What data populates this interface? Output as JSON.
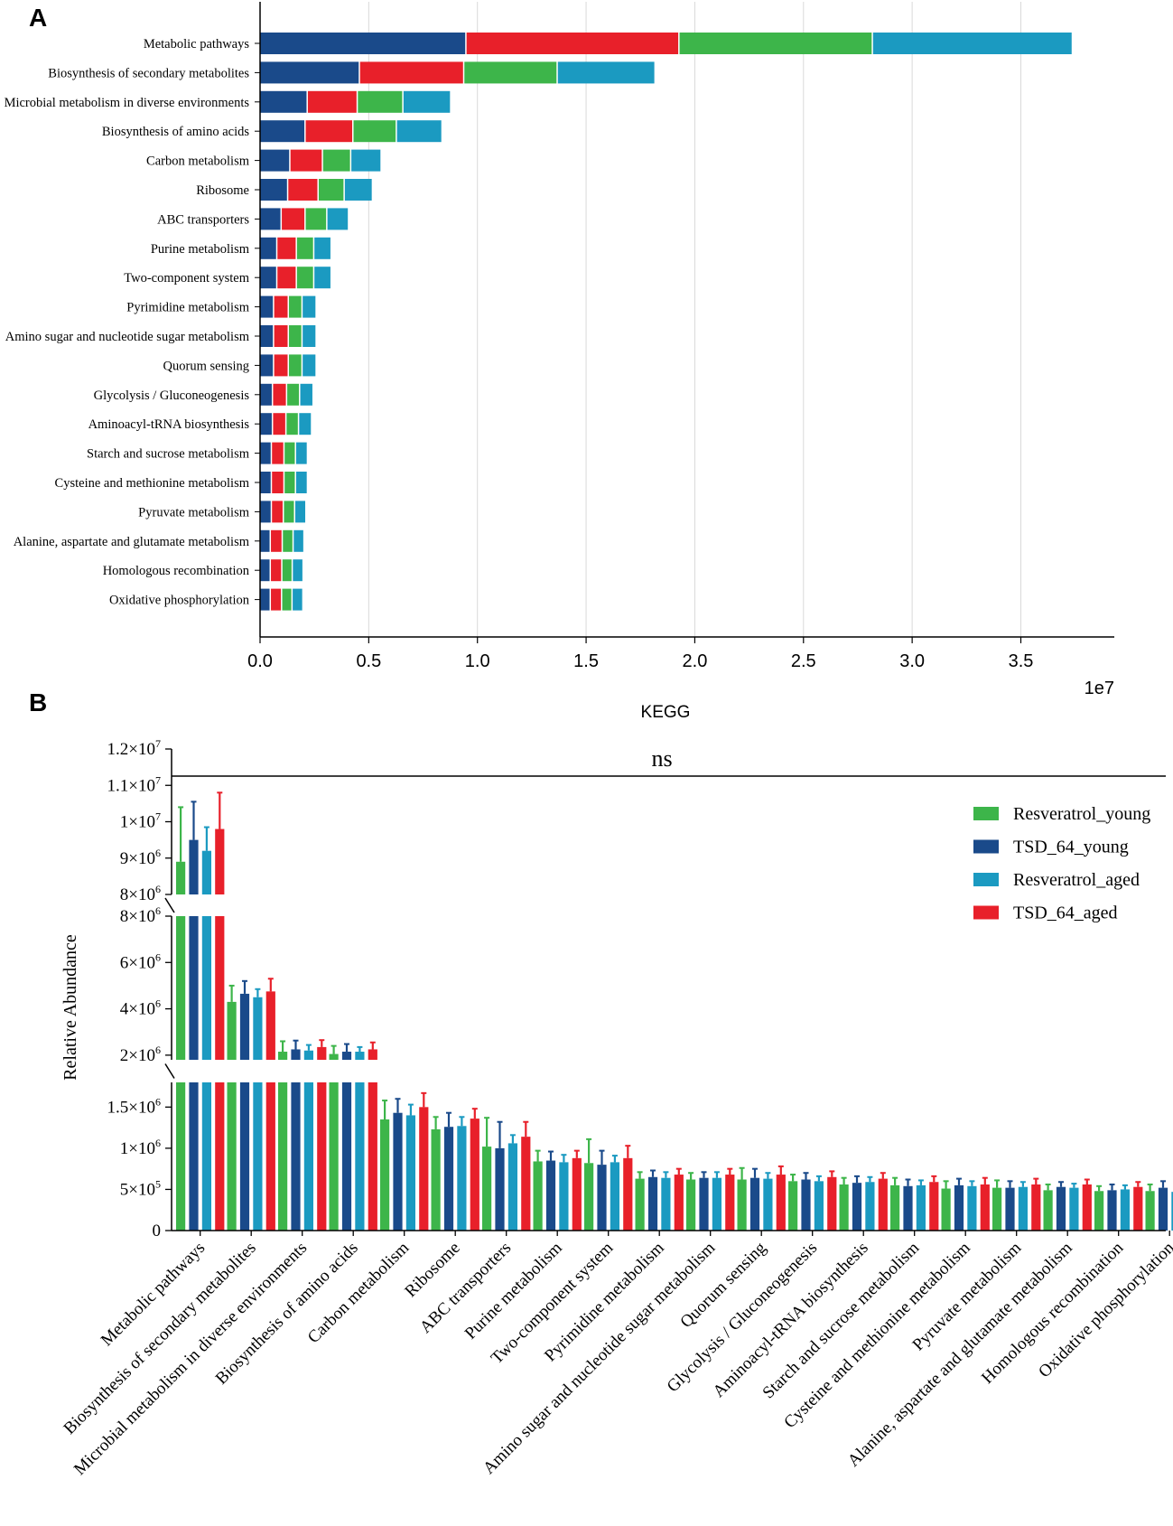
{
  "figure": {
    "panel_a_label": "A",
    "panel_b_label": "B"
  },
  "colors": {
    "TSD_64_young": "#1a4a8a",
    "TSD_64_aged": "#e8202a",
    "Resveratrol_young": "#3db54a",
    "Resveratrol_aged": "#1b9ac1",
    "grid": "#d9d9d9",
    "axis": "#000000"
  },
  "chart_data": [
    {
      "type": "bar",
      "orientation": "horizontal",
      "stacked": true,
      "title": "",
      "xlabel": "KEGG",
      "ylabel": "",
      "offset_text": "1e7",
      "xlim": [
        0,
        3.93
      ],
      "xticks": [
        "0.0",
        "0.5",
        "1.0",
        "1.5",
        "2.0",
        "2.5",
        "3.0",
        "3.5"
      ],
      "xtick_values": [
        0,
        0.5,
        1.0,
        1.5,
        2.0,
        2.5,
        3.0,
        3.5
      ],
      "grid": true,
      "categories": [
        "Metabolic pathways",
        "Biosynthesis of secondary metabolites",
        "Microbial metabolism in diverse environments",
        "Biosynthesis of amino acids",
        "Carbon metabolism",
        "Ribosome",
        "ABC transporters",
        "Purine metabolism",
        "Two-component system",
        "Pyrimidine metabolism",
        "Amino sugar and nucleotide sugar metabolism",
        "Quorum sensing",
        "Glycolysis / Gluconeogenesis",
        "Aminoacyl-tRNA biosynthesis",
        "Starch and sucrose metabolism",
        "Cysteine and methionine metabolism",
        "Pyruvate metabolism",
        "Alanine, aspartate and glutamate metabolism",
        "Homologous recombination",
        "Oxidative phosphorylation"
      ],
      "series": [
        {
          "name": "TSD_64_young",
          "values": [
            0.95,
            0.46,
            0.22,
            0.21,
            0.14,
            0.13,
            0.1,
            0.08,
            0.08,
            0.065,
            0.065,
            0.065,
            0.06,
            0.06,
            0.055,
            0.055,
            0.055,
            0.05,
            0.05,
            0.05
          ]
        },
        {
          "name": "TSD_64_aged",
          "values": [
            0.98,
            0.48,
            0.23,
            0.22,
            0.15,
            0.14,
            0.11,
            0.09,
            0.09,
            0.068,
            0.068,
            0.068,
            0.065,
            0.062,
            0.058,
            0.058,
            0.055,
            0.055,
            0.053,
            0.052
          ]
        },
        {
          "name": "Resveratrol_young",
          "values": [
            0.89,
            0.43,
            0.21,
            0.2,
            0.13,
            0.12,
            0.1,
            0.08,
            0.08,
            0.063,
            0.063,
            0.063,
            0.06,
            0.058,
            0.053,
            0.053,
            0.052,
            0.05,
            0.048,
            0.048
          ]
        },
        {
          "name": "Resveratrol_aged",
          "values": [
            0.92,
            0.45,
            0.22,
            0.21,
            0.14,
            0.13,
            0.1,
            0.08,
            0.08,
            0.065,
            0.065,
            0.065,
            0.062,
            0.06,
            0.055,
            0.055,
            0.052,
            0.05,
            0.05,
            0.05
          ]
        }
      ]
    },
    {
      "type": "bar",
      "orientation": "vertical",
      "grouped": true,
      "broken_axis": true,
      "title": "",
      "xlabel": "",
      "ylabel": "Relative Abundance",
      "significance": "ns",
      "legend_position": "top-right",
      "y_segments": [
        {
          "ylim": [
            8000000,
            12000000
          ],
          "ticks": [
            {
              "base": "8×10",
              "exp": "6"
            },
            {
              "base": "9×10",
              "exp": "6"
            },
            {
              "base": "1×10",
              "exp": "7"
            },
            {
              "base": "1.1×10",
              "exp": "7"
            },
            {
              "base": "1.2×10",
              "exp": "7"
            }
          ]
        },
        {
          "ylim": [
            1800000,
            8000000
          ],
          "ticks": [
            {
              "base": "2×10",
              "exp": "6"
            },
            {
              "base": "4×10",
              "exp": "6"
            },
            {
              "base": "6×10",
              "exp": "6"
            },
            {
              "base": "8×10",
              "exp": "6"
            }
          ]
        },
        {
          "ylim": [
            0,
            1800000
          ],
          "ticks": [
            {
              "base": "0",
              "exp": ""
            },
            {
              "base": "5×10",
              "exp": "5"
            },
            {
              "base": "1×10",
              "exp": "6"
            },
            {
              "base": "1.5×10",
              "exp": "6"
            }
          ]
        }
      ],
      "categories": [
        "Metabolic pathways",
        "Biosynthesis of secondary metabolites",
        "Microbial metabolism in diverse environments",
        "Biosynthesis of amino acids",
        "Carbon metabolism",
        "Ribosome",
        "ABC transporters",
        "Purine metabolism",
        "Two-component system",
        "Pyrimidine metabolism",
        "Amino sugar and nucleotide sugar metabolism",
        "Quorum sensing",
        "Glycolysis / Gluconeogenesis",
        "Aminoacyl-tRNA biosynthesis",
        "Starch and sucrose metabolism",
        "Cysteine and methionine metabolism",
        "Pyruvate metabolism",
        "Alanine, aspartate and glutamate metabolism",
        "Homologous recombination",
        "Oxidative phosphorylation"
      ],
      "series": [
        {
          "name": "Resveratrol_young",
          "values": [
            8900000,
            4300000,
            2150000,
            2050000,
            1350000,
            1230000,
            1020000,
            840000,
            820000,
            630000,
            620000,
            620000,
            600000,
            560000,
            550000,
            510000,
            520000,
            490000,
            480000,
            480000
          ],
          "errors": [
            1500000,
            700000,
            450000,
            350000,
            230000,
            150000,
            350000,
            130000,
            290000,
            80000,
            80000,
            140000,
            80000,
            80000,
            90000,
            90000,
            90000,
            70000,
            60000,
            80000
          ]
        },
        {
          "name": "TSD_64_young",
          "values": [
            9500000,
            4650000,
            2250000,
            2150000,
            1430000,
            1260000,
            1000000,
            850000,
            800000,
            650000,
            640000,
            640000,
            620000,
            580000,
            540000,
            550000,
            520000,
            530000,
            490000,
            520000
          ],
          "errors": [
            1050000,
            550000,
            380000,
            330000,
            170000,
            170000,
            320000,
            110000,
            170000,
            80000,
            70000,
            110000,
            80000,
            80000,
            80000,
            80000,
            80000,
            60000,
            70000,
            80000
          ]
        },
        {
          "name": "Resveratrol_aged",
          "values": [
            9200000,
            4500000,
            2200000,
            2150000,
            1400000,
            1270000,
            1060000,
            830000,
            830000,
            640000,
            640000,
            630000,
            600000,
            590000,
            550000,
            540000,
            530000,
            520000,
            500000,
            470000
          ],
          "errors": [
            650000,
            350000,
            240000,
            200000,
            130000,
            110000,
            100000,
            90000,
            80000,
            70000,
            70000,
            70000,
            60000,
            60000,
            60000,
            60000,
            60000,
            50000,
            50000,
            60000
          ]
        },
        {
          "name": "TSD_64_aged",
          "values": [
            9800000,
            4750000,
            2350000,
            2250000,
            1500000,
            1360000,
            1140000,
            880000,
            880000,
            680000,
            680000,
            680000,
            650000,
            630000,
            590000,
            560000,
            560000,
            560000,
            530000,
            520000
          ],
          "errors": [
            1000000,
            550000,
            300000,
            300000,
            170000,
            120000,
            180000,
            90000,
            150000,
            70000,
            70000,
            100000,
            70000,
            70000,
            70000,
            80000,
            70000,
            60000,
            60000,
            70000
          ]
        }
      ],
      "legend": [
        "Resveratrol_young",
        "TSD_64_young",
        "Resveratrol_aged",
        "TSD_64_aged"
      ]
    }
  ]
}
